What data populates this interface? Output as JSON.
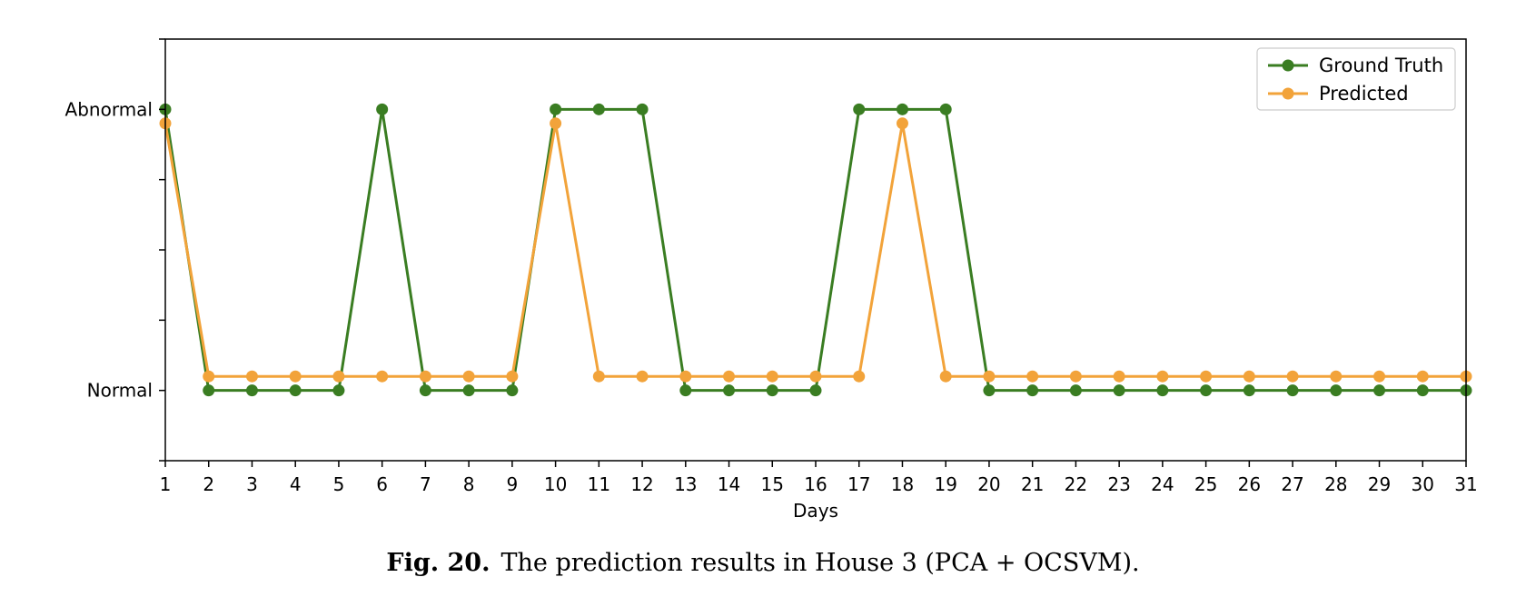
{
  "chart_data": {
    "type": "line",
    "xlabel": "Days",
    "x": [
      1,
      2,
      3,
      4,
      5,
      6,
      7,
      8,
      9,
      10,
      11,
      12,
      13,
      14,
      15,
      16,
      17,
      18,
      19,
      20,
      21,
      22,
      23,
      24,
      25,
      26,
      27,
      28,
      29,
      30,
      31
    ],
    "xlim": [
      1,
      31
    ],
    "ylim": [
      -0.25,
      1.25
    ],
    "yticks": [
      {
        "value": 0,
        "label": "Normal"
      },
      {
        "value": 1,
        "label": "Abnormal"
      }
    ],
    "minor_yticks": [
      0.25,
      0.5,
      0.75
    ],
    "series": [
      {
        "name": "Ground Truth",
        "color": "#3a7d22",
        "values": [
          1,
          0,
          0,
          0,
          0,
          1,
          0,
          0,
          0,
          1,
          1,
          1,
          0,
          0,
          0,
          0,
          1,
          1,
          1,
          0,
          0,
          0,
          0,
          0,
          0,
          0,
          0,
          0,
          0,
          0,
          0
        ]
      },
      {
        "name": "Predicted",
        "color": "#f2a33a",
        "values": [
          0.95,
          0.05,
          0.05,
          0.05,
          0.05,
          0.05,
          0.05,
          0.05,
          0.05,
          0.95,
          0.05,
          0.05,
          0.05,
          0.05,
          0.05,
          0.05,
          0.05,
          0.95,
          0.05,
          0.05,
          0.05,
          0.05,
          0.05,
          0.05,
          0.05,
          0.05,
          0.05,
          0.05,
          0.05,
          0.05,
          0.05
        ]
      }
    ],
    "legend": "top-right",
    "grid": false
  },
  "caption": {
    "figure_label": "Fig. 20.",
    "text": "The prediction results in House 3 (PCA + OCSVM)."
  }
}
